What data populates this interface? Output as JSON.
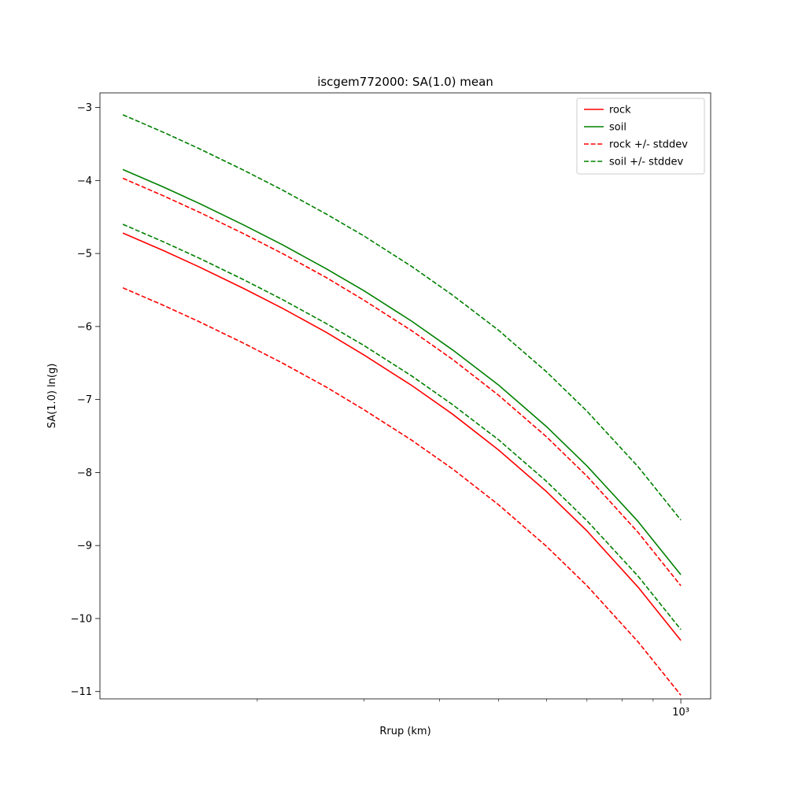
{
  "chart_data": {
    "type": "line",
    "title": "iscgem772000: SA(1.0) mean",
    "xlabel": "Rrup (km)",
    "ylabel": "SA(1.0) ln(g)",
    "xscale": "log",
    "grid": false,
    "xlim": [
      110,
      1120
    ],
    "ylim": [
      -11.1,
      -2.8
    ],
    "yticks": [
      -3,
      -4,
      -5,
      -6,
      -7,
      -8,
      -9,
      -10,
      -11
    ],
    "xticks_major": [
      {
        "value": 1000,
        "label": "10³"
      }
    ],
    "xticks_minor": [
      200,
      300,
      400,
      500,
      600,
      700,
      800,
      900
    ],
    "x": [
      120,
      140,
      160,
      190,
      220,
      260,
      300,
      360,
      420,
      500,
      600,
      700,
      850,
      1000
    ],
    "series": [
      {
        "name": "rock",
        "color": "#ff0000",
        "style": "solid",
        "values": [
          -4.72,
          -4.96,
          -5.18,
          -5.48,
          -5.75,
          -6.08,
          -6.39,
          -6.81,
          -7.2,
          -7.69,
          -8.26,
          -8.8,
          -9.57,
          -10.3
        ]
      },
      {
        "name": "soil",
        "color": "#008000",
        "style": "solid",
        "values": [
          -3.85,
          -4.09,
          -4.31,
          -4.61,
          -4.88,
          -5.21,
          -5.51,
          -5.93,
          -6.32,
          -6.8,
          -7.37,
          -7.91,
          -8.67,
          -9.4
        ]
      },
      {
        "name": "rock_plus_stddev",
        "color": "#ff0000",
        "style": "dashed",
        "values": [
          -3.97,
          -4.21,
          -4.43,
          -4.73,
          -5.0,
          -5.33,
          -5.64,
          -6.06,
          -6.45,
          -6.94,
          -7.51,
          -8.05,
          -8.82,
          -9.55
        ]
      },
      {
        "name": "rock_minus_stddev",
        "color": "#ff0000",
        "style": "dashed",
        "values": [
          -5.47,
          -5.71,
          -5.93,
          -6.23,
          -6.5,
          -6.83,
          -7.14,
          -7.56,
          -7.95,
          -8.44,
          -9.01,
          -9.55,
          -10.32,
          -11.05
        ]
      },
      {
        "name": "soil_plus_stddev",
        "color": "#008000",
        "style": "dashed",
        "values": [
          -3.1,
          -3.34,
          -3.56,
          -3.86,
          -4.13,
          -4.46,
          -4.76,
          -5.18,
          -5.57,
          -6.05,
          -6.62,
          -7.16,
          -7.92,
          -8.65
        ]
      },
      {
        "name": "soil_minus_stddev",
        "color": "#008000",
        "style": "dashed",
        "values": [
          -4.6,
          -4.84,
          -5.06,
          -5.36,
          -5.63,
          -5.96,
          -6.26,
          -6.68,
          -7.07,
          -7.55,
          -8.12,
          -8.66,
          -9.42,
          -10.15
        ]
      }
    ],
    "legend": {
      "position": "upper right",
      "entries": [
        {
          "label": "rock",
          "color": "#ff0000",
          "style": "solid"
        },
        {
          "label": "soil",
          "color": "#008000",
          "style": "solid"
        },
        {
          "label": "rock +/- stddev",
          "color": "#ff0000",
          "style": "dashed"
        },
        {
          "label": "soil +/- stddev",
          "color": "#008000",
          "style": "dashed"
        }
      ]
    }
  }
}
